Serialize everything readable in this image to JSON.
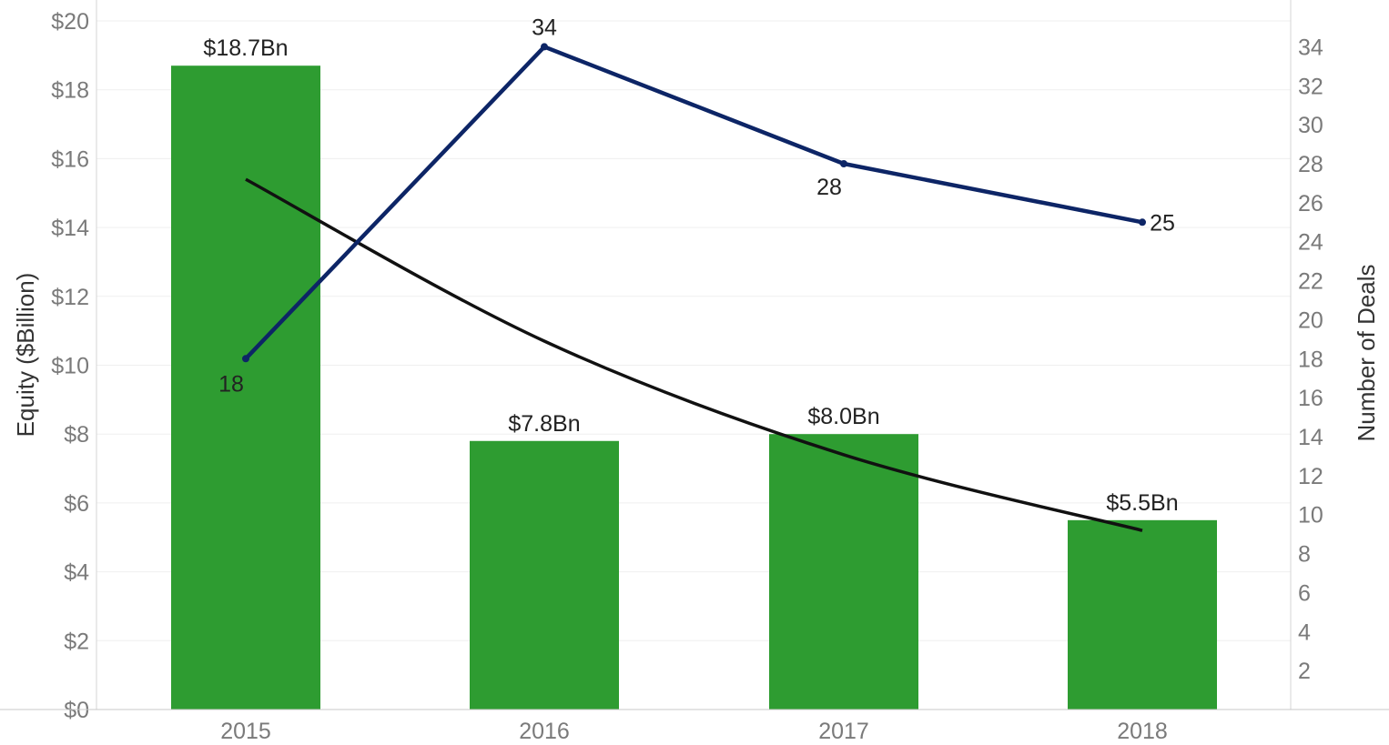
{
  "chart_data": {
    "type": "bar",
    "categories": [
      "2015",
      "2016",
      "2017",
      "2018"
    ],
    "bars": {
      "axis": "left",
      "values": [
        18.7,
        7.8,
        8.0,
        5.5
      ],
      "labels": [
        "$18.7Bn",
        "$7.8Bn",
        "$8.0Bn",
        "$5.5Bn"
      ],
      "color": "#2e9c31"
    },
    "line": {
      "axis": "right",
      "values": [
        18,
        34,
        28,
        25
      ],
      "labels": [
        "18",
        "34",
        "28",
        "25"
      ],
      "color": "#0d2566"
    },
    "trend": {
      "axis": "left",
      "values": [
        15.4,
        10.7,
        7.4,
        5.2
      ],
      "color": "#111111"
    },
    "y_left": {
      "label": "Equity ($Billion)",
      "min": 0,
      "max": 20,
      "ticks": [
        "$0",
        "$2",
        "$4",
        "$6",
        "$8",
        "$10",
        "$12",
        "$14",
        "$16",
        "$18",
        "$20"
      ]
    },
    "y_right": {
      "label": "Number of Deals",
      "min": 0,
      "max": 36.4,
      "ticks": [
        "2",
        "4",
        "6",
        "8",
        "10",
        "12",
        "14",
        "16",
        "18",
        "20",
        "22",
        "24",
        "26",
        "28",
        "30",
        "32",
        "34"
      ]
    },
    "grid": true
  }
}
